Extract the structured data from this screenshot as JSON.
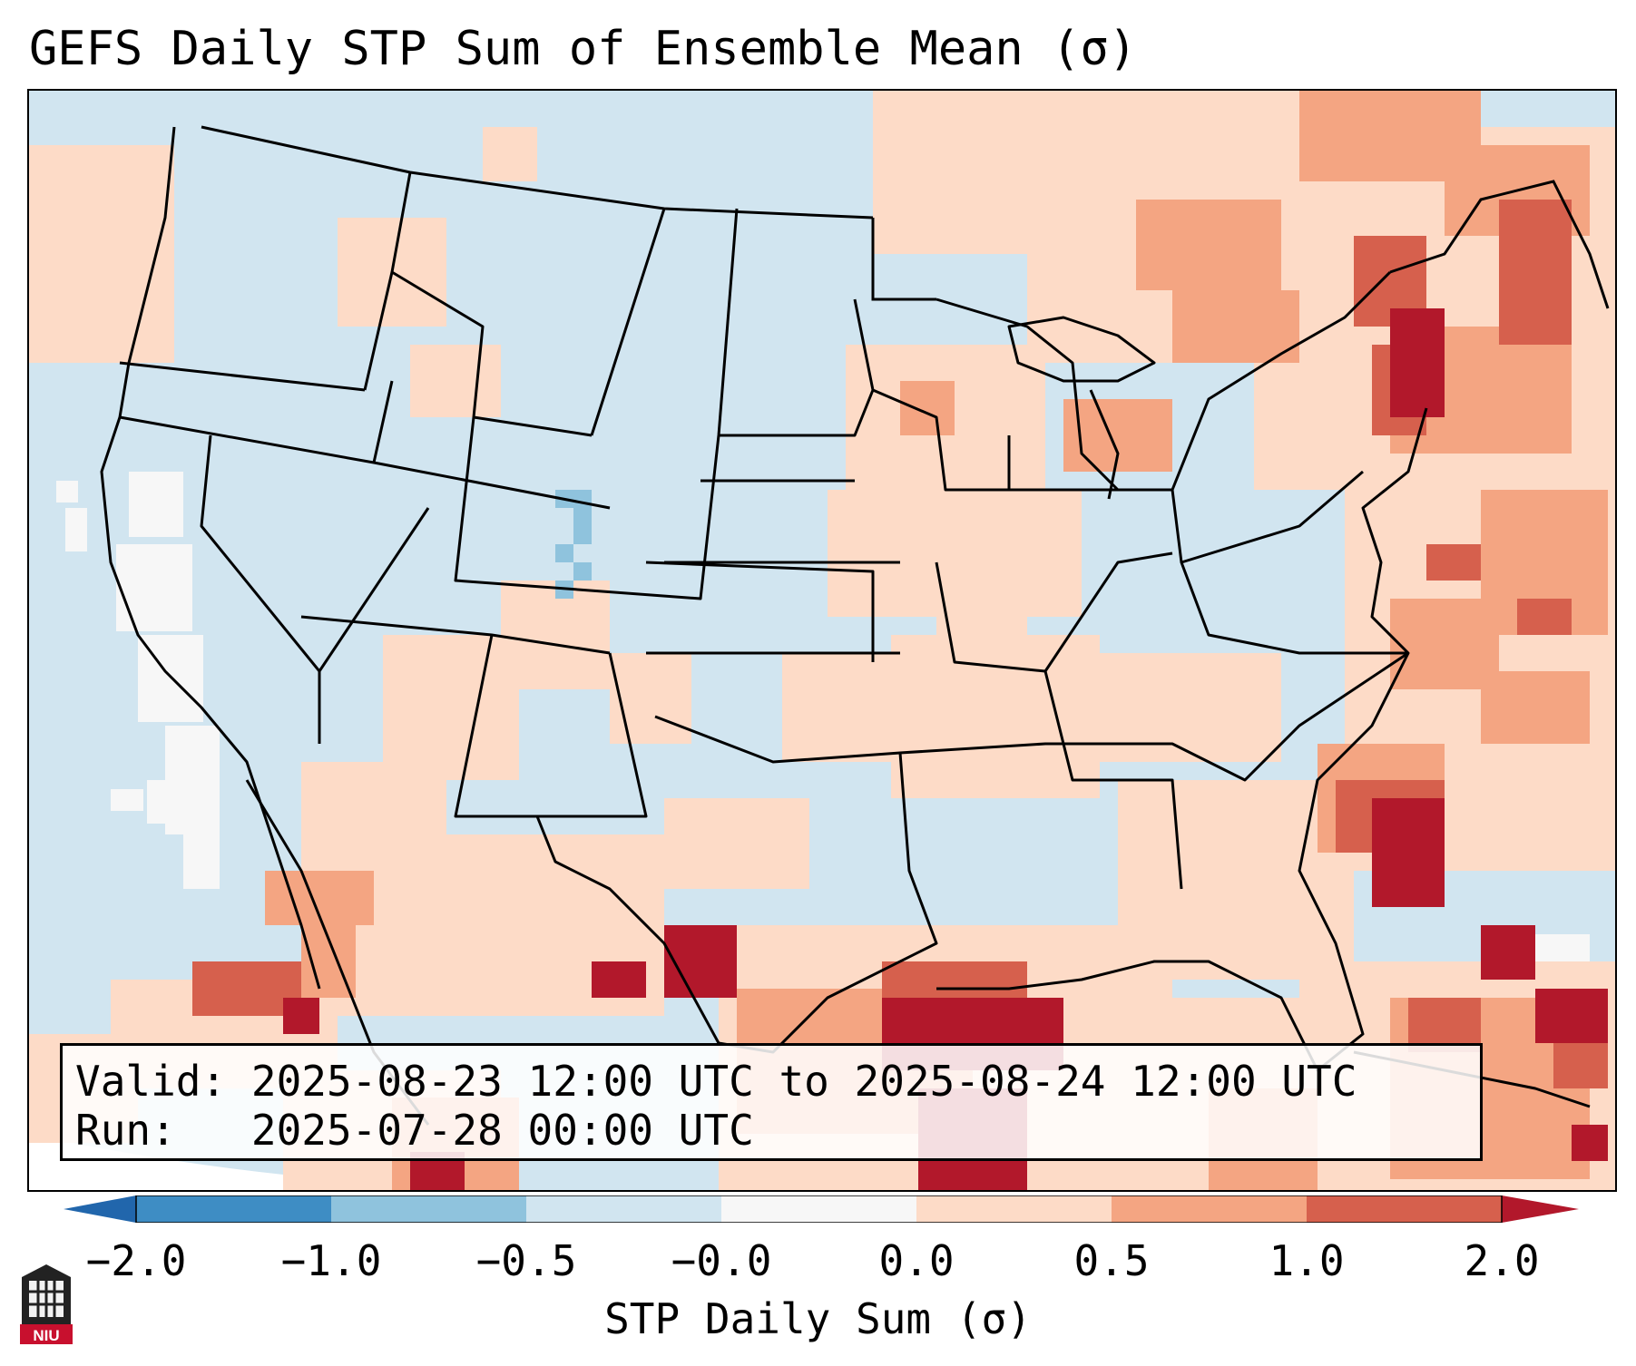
{
  "title": "GEFS Daily STP Sum of Ensemble Mean (σ)",
  "info": {
    "valid_label": "Valid:",
    "valid_text": "2025-08-23 12:00 UTC to 2025-08-24 12:00 UTC",
    "run_label": "Run:",
    "run_text": "2025-07-28 00:00 UTC"
  },
  "colorbar": {
    "label": "STP Daily Sum (σ)",
    "ticks": [
      "−2.0",
      "−1.0",
      "−0.5",
      "−0.0",
      "0.0",
      "0.5",
      "1.0",
      "2.0"
    ],
    "colors": [
      "#3e8dc4",
      "#8fc3dd",
      "#d1e5f0",
      "#f7f7f7",
      "#fddbc7",
      "#f4a582",
      "#d6604d"
    ],
    "extend_low_color": "#2166ac",
    "extend_high_color": "#b2182b"
  },
  "map": {
    "region": "Contiguous United States",
    "background_color": "#d1e5f0",
    "border_color": "#000000"
  },
  "logo": {
    "text": "NIU",
    "name": "niu-logo",
    "color": "#c8102e"
  },
  "icons": [
    "niu-logo-icon"
  ]
}
